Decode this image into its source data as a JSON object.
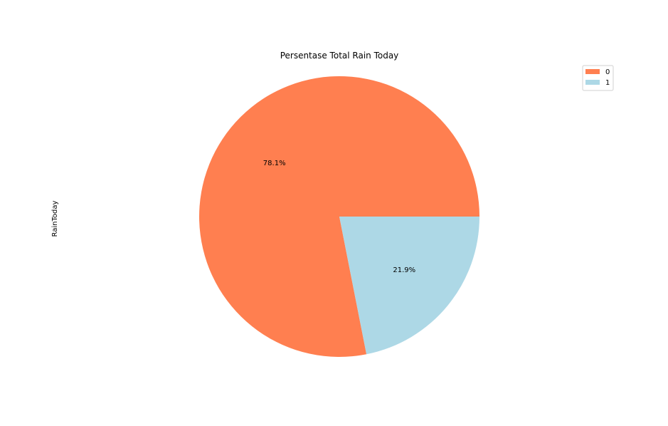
{
  "chart_data": {
    "type": "pie",
    "title": "Persentase Total Rain Today",
    "ylabel": "RainToday",
    "start_angle_deg": 0,
    "direction": "counterclockwise",
    "slices": [
      {
        "label": "0",
        "value": 78.1,
        "pct_label": "78.1%",
        "color": "#ff7f50"
      },
      {
        "label": "1",
        "value": 21.9,
        "pct_label": "21.9%",
        "color": "#add8e6"
      }
    ],
    "legend": {
      "position": "top-right"
    }
  }
}
